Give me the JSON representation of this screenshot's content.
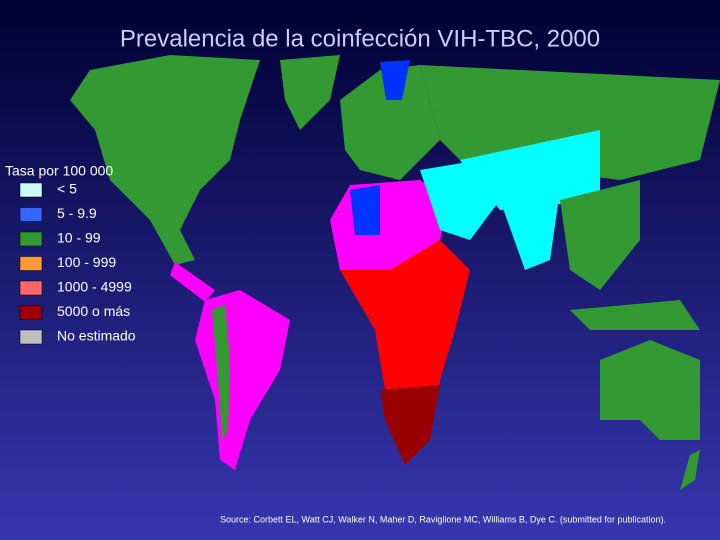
{
  "title": "Prevalencia de la coinfección VIH-TBC, 2000",
  "legend": {
    "title": "Tasa por 100 000",
    "items": [
      {
        "label": "< 5",
        "color": "#ccffff"
      },
      {
        "label": "5 - 9.9",
        "color": "#3366ff"
      },
      {
        "label": "10 - 99",
        "color": "#339933"
      },
      {
        "label": "100 - 999",
        "color": "#ff9933"
      },
      {
        "label": "1000 - 4999",
        "color": "#ff6666"
      },
      {
        "label": "5000 o más",
        "color": "#990000"
      },
      {
        "label": "No estimado",
        "color": "#c0c0c0"
      }
    ]
  },
  "source": "Source: Corbett EL, Watt CJ, Walker N, Maher D, Raviglione MC, Williams B, Dye C. (submitted for publication)."
}
